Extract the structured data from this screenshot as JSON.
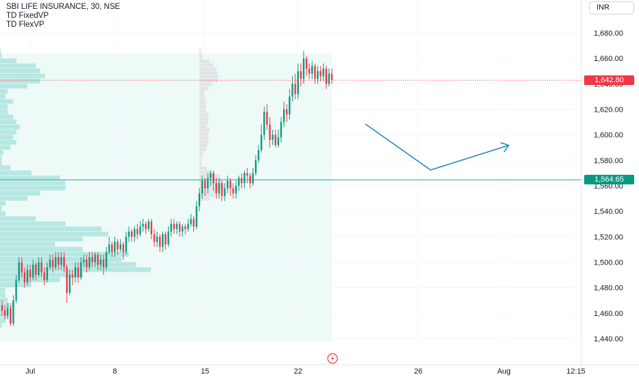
{
  "header": {
    "title": "SBI LIFE INSURANCE, 30, NSE",
    "indicators": [
      "TD FixedVP",
      "TD FlexVP"
    ],
    "currency": "INR"
  },
  "price_tags": {
    "last": {
      "value": "1,642.80",
      "color": "#f23645"
    },
    "poc": {
      "value": "1,564.65",
      "color": "#089981"
    }
  },
  "colors": {
    "up": "#089981",
    "down": "#f23645",
    "profile": "#b7e7e2",
    "profile_bg": "#eefaf8",
    "arrow": "#1e88b4",
    "poc_line": "#22ab94"
  },
  "chart_data": {
    "type": "candlestick",
    "y_ticks": [
      "1,680.00",
      "1,660.00",
      "1,640.00",
      "1,620.00",
      "1,600.00",
      "1,580.00",
      "1,560.00",
      "1,540.00",
      "1,520.00",
      "1,500.00",
      "1,480.00",
      "1,460.00",
      "1,440.00"
    ],
    "y_range": [
      1434,
      1696
    ],
    "x_ticks": [
      "Jul",
      "8",
      "15",
      "22",
      "26",
      "Aug",
      "12:15"
    ],
    "last_price": 1642.8,
    "poc_price": 1564.65,
    "candles": [
      [
        1466,
        1462,
        1470,
        1458
      ],
      [
        1462,
        1458,
        1466,
        1455
      ],
      [
        1458,
        1464,
        1468,
        1455
      ],
      [
        1464,
        1452,
        1466,
        1450
      ],
      [
        1452,
        1470,
        1474,
        1450
      ],
      [
        1470,
        1486,
        1490,
        1468
      ],
      [
        1486,
        1500,
        1504,
        1484
      ],
      [
        1500,
        1492,
        1504,
        1488
      ],
      [
        1492,
        1484,
        1496,
        1480
      ],
      [
        1484,
        1494,
        1498,
        1482
      ],
      [
        1494,
        1488,
        1498,
        1484
      ],
      [
        1488,
        1498,
        1502,
        1486
      ],
      [
        1498,
        1490,
        1500,
        1486
      ],
      [
        1490,
        1500,
        1504,
        1488
      ],
      [
        1500,
        1492,
        1504,
        1488
      ],
      [
        1492,
        1486,
        1496,
        1482
      ],
      [
        1486,
        1496,
        1500,
        1484
      ],
      [
        1496,
        1502,
        1506,
        1494
      ],
      [
        1502,
        1496,
        1506,
        1492
      ],
      [
        1496,
        1504,
        1508,
        1494
      ],
      [
        1504,
        1498,
        1508,
        1494
      ],
      [
        1498,
        1504,
        1508,
        1494
      ],
      [
        1504,
        1496,
        1508,
        1492
      ],
      [
        1496,
        1476,
        1498,
        1468
      ],
      [
        1476,
        1490,
        1494,
        1474
      ],
      [
        1490,
        1488,
        1494,
        1482
      ],
      [
        1488,
        1496,
        1500,
        1484
      ],
      [
        1496,
        1488,
        1500,
        1484
      ],
      [
        1488,
        1500,
        1504,
        1486
      ],
      [
        1500,
        1502,
        1506,
        1496
      ],
      [
        1502,
        1496,
        1506,
        1492
      ],
      [
        1496,
        1504,
        1508,
        1494
      ],
      [
        1504,
        1500,
        1508,
        1496
      ],
      [
        1500,
        1506,
        1508,
        1496
      ],
      [
        1506,
        1498,
        1508,
        1494
      ],
      [
        1498,
        1502,
        1506,
        1494
      ],
      [
        1502,
        1496,
        1506,
        1490
      ],
      [
        1496,
        1508,
        1512,
        1494
      ],
      [
        1508,
        1514,
        1520,
        1506
      ],
      [
        1514,
        1508,
        1516,
        1504
      ],
      [
        1508,
        1516,
        1520,
        1504
      ],
      [
        1516,
        1510,
        1518,
        1506
      ],
      [
        1510,
        1514,
        1518,
        1508
      ],
      [
        1514,
        1508,
        1516,
        1502
      ],
      [
        1508,
        1520,
        1524,
        1506
      ],
      [
        1520,
        1524,
        1528,
        1516
      ],
      [
        1524,
        1520,
        1526,
        1516
      ],
      [
        1520,
        1526,
        1528,
        1516
      ],
      [
        1526,
        1522,
        1530,
        1518
      ],
      [
        1522,
        1528,
        1532,
        1520
      ],
      [
        1528,
        1530,
        1534,
        1524
      ],
      [
        1530,
        1526,
        1532,
        1522
      ],
      [
        1526,
        1532,
        1534,
        1524
      ],
      [
        1532,
        1522,
        1534,
        1518
      ],
      [
        1522,
        1516,
        1526,
        1512
      ],
      [
        1516,
        1520,
        1524,
        1512
      ],
      [
        1520,
        1512,
        1522,
        1508
      ],
      [
        1512,
        1522,
        1524,
        1508
      ],
      [
        1522,
        1514,
        1524,
        1510
      ],
      [
        1514,
        1524,
        1528,
        1512
      ],
      [
        1524,
        1530,
        1534,
        1520
      ],
      [
        1530,
        1526,
        1534,
        1522
      ],
      [
        1526,
        1530,
        1532,
        1522
      ],
      [
        1530,
        1524,
        1532,
        1520
      ],
      [
        1524,
        1528,
        1530,
        1520
      ],
      [
        1528,
        1526,
        1530,
        1522
      ],
      [
        1526,
        1530,
        1534,
        1524
      ],
      [
        1530,
        1534,
        1538,
        1528
      ],
      [
        1534,
        1528,
        1536,
        1524
      ],
      [
        1528,
        1544,
        1548,
        1526
      ],
      [
        1544,
        1554,
        1558,
        1540
      ],
      [
        1554,
        1564,
        1568,
        1550
      ],
      [
        1564,
        1558,
        1566,
        1552
      ],
      [
        1558,
        1566,
        1570,
        1554
      ],
      [
        1566,
        1570,
        1572,
        1560
      ],
      [
        1570,
        1562,
        1572,
        1556
      ],
      [
        1562,
        1554,
        1566,
        1550
      ],
      [
        1554,
        1562,
        1566,
        1550
      ],
      [
        1562,
        1552,
        1564,
        1548
      ],
      [
        1552,
        1558,
        1562,
        1548
      ],
      [
        1558,
        1564,
        1568,
        1554
      ],
      [
        1564,
        1558,
        1566,
        1552
      ],
      [
        1558,
        1554,
        1562,
        1550
      ],
      [
        1554,
        1560,
        1564,
        1550
      ],
      [
        1560,
        1566,
        1568,
        1556
      ],
      [
        1566,
        1562,
        1570,
        1558
      ],
      [
        1562,
        1570,
        1572,
        1558
      ],
      [
        1570,
        1568,
        1574,
        1562
      ],
      [
        1568,
        1562,
        1570,
        1558
      ],
      [
        1562,
        1570,
        1574,
        1560
      ],
      [
        1570,
        1580,
        1584,
        1568
      ],
      [
        1580,
        1588,
        1592,
        1578
      ],
      [
        1588,
        1600,
        1608,
        1586
      ],
      [
        1600,
        1618,
        1622,
        1596
      ],
      [
        1618,
        1608,
        1624,
        1604
      ],
      [
        1608,
        1596,
        1614,
        1590
      ],
      [
        1596,
        1600,
        1604,
        1592
      ],
      [
        1600,
        1592,
        1604,
        1590
      ],
      [
        1592,
        1598,
        1604,
        1590
      ],
      [
        1598,
        1610,
        1614,
        1594
      ],
      [
        1610,
        1620,
        1626,
        1606
      ],
      [
        1620,
        1616,
        1624,
        1610
      ],
      [
        1616,
        1630,
        1636,
        1612
      ],
      [
        1630,
        1640,
        1646,
        1626
      ],
      [
        1640,
        1632,
        1648,
        1628
      ],
      [
        1632,
        1650,
        1656,
        1628
      ],
      [
        1650,
        1644,
        1656,
        1638
      ],
      [
        1644,
        1660,
        1666,
        1640
      ],
      [
        1660,
        1652,
        1662,
        1646
      ],
      [
        1652,
        1648,
        1656,
        1644
      ],
      [
        1648,
        1654,
        1658,
        1644
      ],
      [
        1654,
        1644,
        1656,
        1640
      ],
      [
        1644,
        1650,
        1654,
        1640
      ],
      [
        1650,
        1646,
        1654,
        1642
      ],
      [
        1646,
        1652,
        1656,
        1642
      ],
      [
        1652,
        1640,
        1654,
        1636
      ],
      [
        1640,
        1648,
        1652,
        1638
      ],
      [
        1648,
        1643,
        1652,
        1640
      ]
    ],
    "date_tick_candle_index": {
      "Jul": 10,
      "8": 40,
      "15": 72,
      "22": 105
    }
  }
}
